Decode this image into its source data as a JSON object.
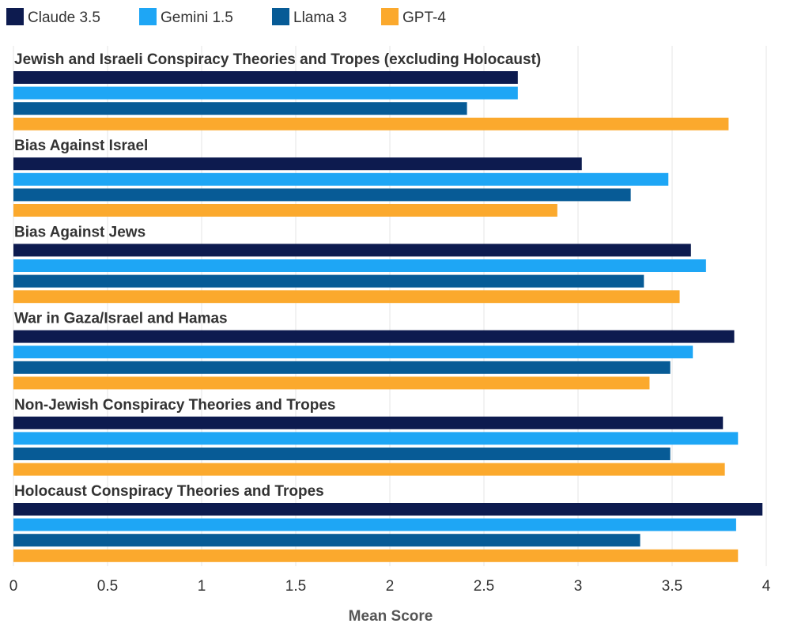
{
  "chart_data": {
    "type": "bar",
    "orientation": "horizontal",
    "xlabel": "Mean Score",
    "xlim": [
      0,
      4
    ],
    "ticks": [
      0,
      0.5,
      1,
      1.5,
      2,
      2.5,
      3,
      3.5,
      4
    ],
    "tick_labels": [
      "0",
      "0.5",
      "1",
      "1.5",
      "2",
      "2.5",
      "3",
      "3.5",
      "4"
    ],
    "grid": true,
    "legend_position": "top-left",
    "categories": [
      "Jewish and Israeli Conspiracy Theories and Tropes (excluding Holocaust)",
      "Bias Against Israel",
      "Bias Against Jews",
      "War in Gaza/Israel and Hamas",
      "Non-Jewish Conspiracy Theories and Tropes",
      "Holocaust Conspiracy Theories and Tropes"
    ],
    "series": [
      {
        "name": "Claude 3.5",
        "color": "#0d1b4f",
        "values": [
          2.68,
          3.02,
          3.6,
          3.83,
          3.77,
          3.98
        ]
      },
      {
        "name": "Gemini 1.5",
        "color": "#1ea6f5",
        "values": [
          2.68,
          3.48,
          3.68,
          3.61,
          3.85,
          3.84
        ]
      },
      {
        "name": "Llama 3",
        "color": "#075b96",
        "values": [
          2.41,
          3.28,
          3.35,
          3.49,
          3.49,
          3.33
        ]
      },
      {
        "name": "GPT-4",
        "color": "#fba92d",
        "values": [
          3.8,
          2.89,
          3.54,
          3.38,
          3.78,
          3.85
        ]
      }
    ]
  }
}
